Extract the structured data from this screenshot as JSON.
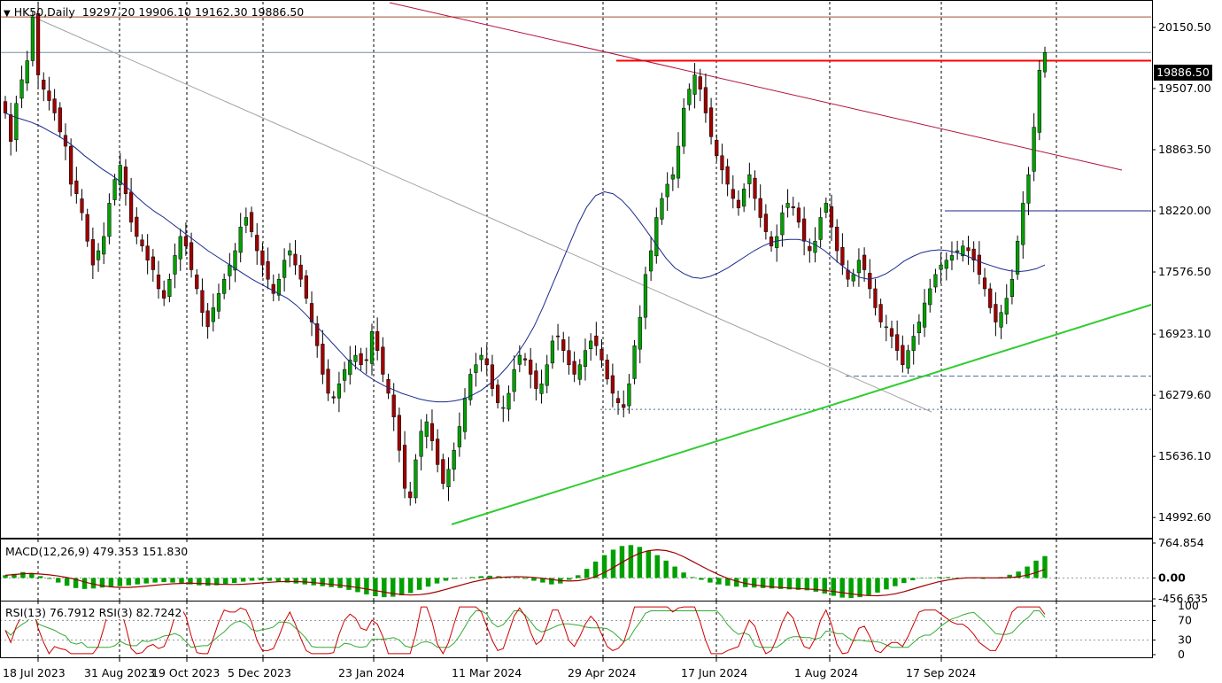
{
  "header": {
    "symbol": "HK50,Daily",
    "ohlc": "19297.20 19906.10 19162.30 19886.50"
  },
  "current_price_label": "19886.50",
  "chart_data": [
    {
      "type": "candlestick",
      "title": "HK50,Daily",
      "x_ticks": [
        "18 Jul 2023",
        "31 Aug 2023",
        "19 Oct 2023",
        "5 Dec 2023",
        "23 Jan 2024",
        "11 Mar 2024",
        "29 Apr 2024",
        "17 Jun 2024",
        "1 Aug 2024",
        "17 Sep 2024"
      ],
      "y_ticks": [
        14992.6,
        15636.1,
        16279.6,
        16923.1,
        17576.5,
        18220.0,
        18863.5,
        19507.0,
        20150.5
      ],
      "y_tick_labels": [
        "14992.60",
        "15636.10",
        "16279.60",
        "16923.10",
        "17576.50",
        "18220.00",
        "18863.50",
        "19507.00",
        "20150.50"
      ],
      "ylim": [
        14780,
        20420
      ],
      "last_close": 19886.5,
      "grid": "vertical-dotted",
      "closes": [
        19250,
        18950,
        19350,
        19600,
        19800,
        20260,
        19650,
        19500,
        19380,
        19250,
        19050,
        18900,
        18500,
        18400,
        18200,
        17900,
        17650,
        17800,
        17950,
        18300,
        18550,
        18700,
        18400,
        18100,
        17950,
        17850,
        17700,
        17600,
        17400,
        17300,
        17500,
        17750,
        17950,
        17850,
        17600,
        17400,
        17150,
        17000,
        17200,
        17350,
        17500,
        17650,
        17800,
        18050,
        18150,
        18000,
        17800,
        17650,
        17500,
        17350,
        17500,
        17700,
        17800,
        17650,
        17500,
        17300,
        17050,
        16800,
        16500,
        16300,
        16250,
        16400,
        16550,
        16650,
        16700,
        16600,
        16650,
        16950,
        16750,
        16500,
        16300,
        16050,
        15700,
        15300,
        15200,
        15600,
        15900,
        16000,
        15800,
        15550,
        15350,
        15500,
        15700,
        15950,
        16250,
        16500,
        16600,
        16700,
        16600,
        16350,
        16200,
        16150,
        16300,
        16550,
        16700,
        16650,
        16500,
        16350,
        16400,
        16600,
        16850,
        16900,
        16750,
        16600,
        16500,
        16600,
        16750,
        16850,
        16800,
        16650,
        16450,
        16300,
        16200,
        16150,
        16400,
        16800,
        17100,
        17550,
        17800,
        18150,
        18350,
        18500,
        18600,
        18900,
        19300,
        19500,
        19650,
        19500,
        19250,
        19000,
        18800,
        18650,
        18500,
        18350,
        18250,
        18450,
        18600,
        18350,
        18150,
        18000,
        17850,
        17950,
        18200,
        18300,
        18250,
        18100,
        17900,
        17800,
        17900,
        18150,
        18300,
        18050,
        17800,
        17650,
        17500,
        17550,
        17700,
        17600,
        17400,
        17200,
        17050,
        17000,
        16900,
        16750,
        16600,
        16750,
        16900,
        17050,
        17250,
        17400,
        17550,
        17650,
        17700,
        17750,
        17800,
        17850,
        17800,
        17700,
        17550,
        17400,
        17200,
        17050,
        17150,
        17300,
        17500,
        17900,
        18300,
        18600,
        19100,
        19700,
        19886.5
      ],
      "series": [
        {
          "name": "MA",
          "values": [
            19250,
            19210,
            19180,
            19150,
            19110,
            19060,
            19010,
            18950,
            18880,
            18800,
            18730,
            18660,
            18600,
            18530,
            18450,
            18360,
            18280,
            18210,
            18150,
            18080,
            18010,
            17940,
            17870,
            17800,
            17740,
            17680,
            17620,
            17560,
            17500,
            17450,
            17400,
            17350,
            17300,
            17230,
            17140,
            17040,
            16940,
            16840,
            16740,
            16640,
            16560,
            16490,
            16430,
            16380,
            16340,
            16300,
            16270,
            16240,
            16220,
            16210,
            16210,
            16220,
            16240,
            16280,
            16330,
            16400,
            16480,
            16580,
            16700,
            16840,
            17000,
            17200,
            17420,
            17640,
            17860,
            18080,
            18260,
            18380,
            18420,
            18400,
            18330,
            18230,
            18110,
            17980,
            17850,
            17720,
            17620,
            17560,
            17520,
            17510,
            17530,
            17570,
            17620,
            17680,
            17740,
            17800,
            17850,
            17890,
            17910,
            17920,
            17920,
            17900,
            17860,
            17800,
            17720,
            17640,
            17570,
            17520,
            17500,
            17520,
            17560,
            17620,
            17690,
            17740,
            17780,
            17800,
            17810,
            17800,
            17780,
            17750,
            17710,
            17670,
            17640,
            17610,
            17590,
            17580,
            17590,
            17610,
            17650
          ]
        },
        {
          "name": "MACD(12,26,9)",
          "values": [
            60,
            90,
            130,
            110,
            40,
            -20,
            -100,
            -170,
            -220,
            -240,
            -230,
            -210,
            -200,
            -180,
            -160,
            -140,
            -120,
            -100,
            -90,
            -100,
            -120,
            -140,
            -160,
            -170,
            -160,
            -140,
            -110,
            -80,
            -60,
            -50,
            -60,
            -80,
            -100,
            -120,
            -140,
            -160,
            -180,
            -200,
            -220,
            -260,
            -310,
            -360,
            -400,
            -420,
            -410,
            -380,
            -330,
            -260,
            -190,
            -120,
            -60,
            -20,
            0,
            20,
            40,
            50,
            40,
            30,
            10,
            -20,
            -60,
            -100,
            -140,
            -120,
            -40,
            60,
            200,
            360,
            500,
            620,
            700,
            720,
            680,
            600,
            500,
            380,
            250,
            120,
            20,
            -40,
            -100,
            -140,
            -170,
            -190,
            -200,
            -210,
            -220,
            -230,
            -240,
            -250,
            -260,
            -270,
            -300,
            -340,
            -390,
            -430,
            -440,
            -420,
            -380,
            -320,
            -250,
            -180,
            -110,
            -50,
            -10,
            10,
            20,
            20,
            10,
            0,
            -10,
            -20,
            -10,
            20,
            70,
            140,
            250,
            380,
            479.353
          ]
        }
      ],
      "annotations": [
        "red horizontal resistance near 19800",
        "red descending trendline",
        "green ascending trendline",
        "blue horizontal line near 18220",
        "grey diagonal line"
      ]
    },
    {
      "type": "line",
      "title": "MACD(12,26,9) 479.353 151.830",
      "y_tick_labels": [
        "764.854",
        "0.00",
        "-456.635"
      ],
      "values": {
        "macd": 479.353,
        "signal": 151.83
      }
    },
    {
      "type": "line",
      "title": "RSI(13) 76.7912  RSI(3) 82.7242",
      "y_tick_labels": [
        "100",
        "70",
        "30",
        "0"
      ],
      "values": {
        "rsi13": 76.7912,
        "rsi3": 82.7242
      },
      "levels": [
        70,
        30
      ]
    }
  ],
  "macd_label": "MACD(12,26,9) 479.353 151.830",
  "rsi_label": "RSI(13) 76.7912  RSI(3) 82.7242",
  "colors": {
    "bull": "#00a000",
    "bear": "#a00000",
    "wick": "#000000",
    "ma": "#1a2a8a",
    "resistance": "#ff0000",
    "downtrend": "#b4123c",
    "uptrend": "#33cc33",
    "grid": "#000000"
  }
}
